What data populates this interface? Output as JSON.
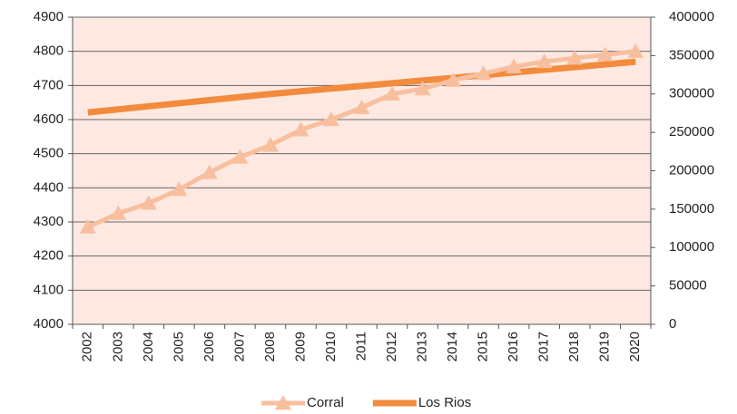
{
  "chart_data": {
    "type": "line",
    "categories": [
      "2002",
      "2003",
      "2004",
      "2005",
      "2006",
      "2007",
      "2008",
      "2009",
      "2010",
      "2011",
      "2012",
      "2013",
      "2014",
      "2015",
      "2016",
      "2017",
      "2018",
      "2019",
      "2020"
    ],
    "series": [
      {
        "name": "Corral",
        "color": "#f8bf9f",
        "marker": "triangle",
        "values": [
          4285,
          4325,
          4355,
          4395,
          4445,
          4490,
          4525,
          4570,
          4600,
          4635,
          4675,
          4690,
          4715,
          4735,
          4755,
          4770,
          4780,
          4790,
          4800
        ]
      },
      {
        "name": "Los Rios",
        "color": "#f28b3c",
        "axis": "y2",
        "values": [
          276000,
          280000,
          284000,
          288000,
          292000,
          296000,
          300000,
          303500,
          307000,
          310500,
          314000,
          317500,
          321000,
          324500,
          328000,
          331500,
          335000,
          338500,
          342000
        ]
      }
    ],
    "ylim": [
      4000,
      4900
    ],
    "yticks": [
      4000,
      4100,
      4200,
      4300,
      4400,
      4500,
      4600,
      4700,
      4800,
      4900
    ],
    "y2lim": [
      0,
      400000
    ],
    "y2ticks": [
      0,
      50000,
      100000,
      150000,
      200000,
      250000,
      300000,
      350000,
      400000
    ],
    "grid": true,
    "legend": "bottom"
  }
}
